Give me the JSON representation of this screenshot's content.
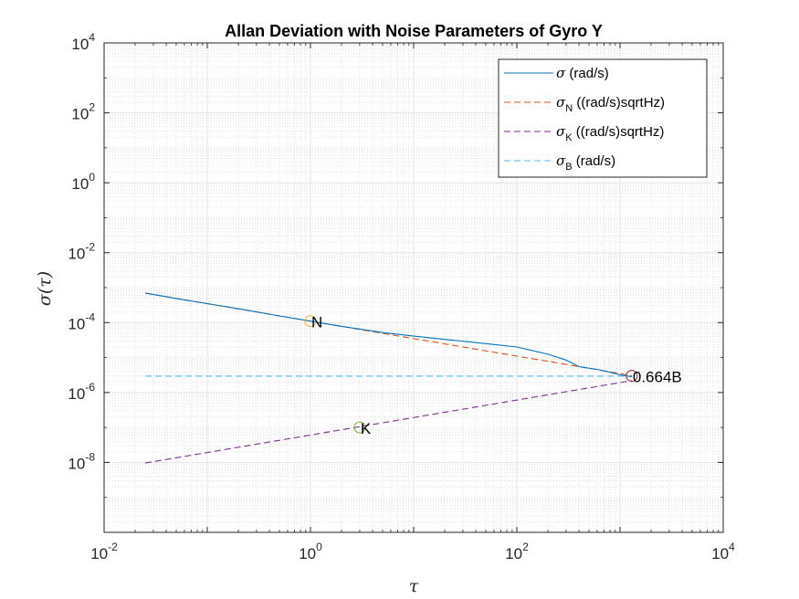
{
  "chart_data": {
    "type": "line",
    "title": "Allan Deviation with Noise Parameters of Gyro Y",
    "xlabel": "τ",
    "ylabel": "σ(τ)",
    "xscale": "log",
    "yscale": "log",
    "xlim": [
      0.01,
      10000
    ],
    "ylim": [
      1e-10,
      10000
    ],
    "grid": true,
    "minor_grid": true,
    "legend_position": "top-right",
    "x_ticks": [
      {
        "base": "10",
        "exp": "-2"
      },
      {
        "base": "10",
        "exp": "0"
      },
      {
        "base": "10",
        "exp": "2"
      },
      {
        "base": "10",
        "exp": "4"
      }
    ],
    "y_ticks": [
      {
        "base": "10",
        "exp": "-8"
      },
      {
        "base": "10",
        "exp": "-6"
      },
      {
        "base": "10",
        "exp": "-4"
      },
      {
        "base": "10",
        "exp": "-2"
      },
      {
        "base": "10",
        "exp": "0"
      },
      {
        "base": "10",
        "exp": "2"
      },
      {
        "base": "10",
        "exp": "4"
      }
    ],
    "series": [
      {
        "name": "σ (rad/s)",
        "legend_main": "σ",
        "legend_sub": "",
        "legend_rest": " (rad/s)",
        "color": "#0072BD",
        "dash": "solid",
        "x": [
          0.025,
          0.05,
          0.1,
          0.2,
          0.5,
          1,
          2,
          5,
          10,
          20,
          50,
          100,
          200,
          300,
          400,
          600,
          800,
          1000,
          1300
        ],
        "y": [
          0.0007,
          0.00049,
          0.00035,
          0.00025,
          0.000155,
          0.00011,
          7.8e-05,
          5.2e-05,
          4.1e-05,
          3.3e-05,
          2.5e-05,
          2e-05,
          1.25e-05,
          8.5e-06,
          5.5e-06,
          4.6e-06,
          3.8e-06,
          3.2e-06,
          2.8e-06
        ]
      },
      {
        "name": "σN ((rad/s)sqrtHz)",
        "legend_main": "σ",
        "legend_sub": "N",
        "legend_rest": " ((rad/s)sqrtHz)",
        "color": "#D95319",
        "dash": "dashed",
        "x": [
          0.025,
          1300
        ],
        "y": [
          0.000695,
          3.06e-06
        ]
      },
      {
        "name": "σK ((rad/s)sqrtHz)",
        "legend_main": "σ",
        "legend_sub": "K",
        "legend_rest": " ((rad/s)sqrtHz)",
        "color": "#7E2F8E",
        "dash": "dashed",
        "x": [
          0.025,
          1300
        ],
        "y": [
          9.6e-09,
          2.19e-06
        ]
      },
      {
        "name": "σB (rad/s)",
        "legend_main": "σ",
        "legend_sub": "B",
        "legend_rest": " (rad/s)",
        "color": "#4DBEEE",
        "dash": "dashed",
        "x": [
          0.025,
          1300
        ],
        "y": [
          2.95e-06,
          2.95e-06
        ]
      }
    ],
    "annotations": [
      {
        "label": "N",
        "x": 1,
        "y": 0.00011,
        "marker_color": "#EDB120"
      },
      {
        "label": "K",
        "x": 3,
        "y": 1e-07,
        "marker_color": "#77AC30"
      },
      {
        "label": "0.664B",
        "x": 1300,
        "y": 3e-06,
        "marker_color": "#A2142F"
      }
    ]
  }
}
